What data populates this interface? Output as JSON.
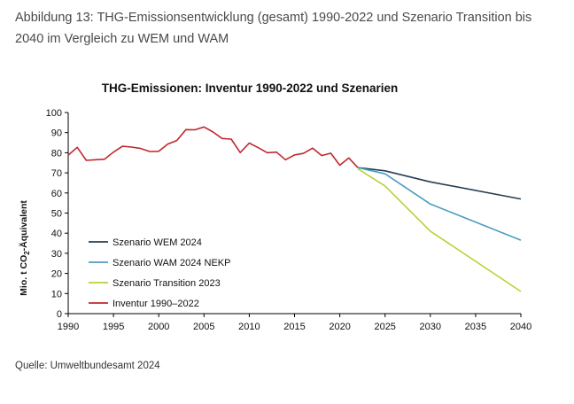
{
  "figure": {
    "caption": "Abbildung 13: THG-Emissionsentwicklung (gesamt) 1990-2022 und Szenario Transition bis 2040 im Vergleich zu WEM und WAM",
    "source": "Quelle: Umweltbundesamt 2024"
  },
  "chart_data": {
    "type": "line",
    "title": "THG-Emissionen: Inventur 1990-2022 und Szenarien",
    "ylabel_main": "Mio. t CO",
    "ylabel_sub": "2",
    "ylabel_tail": "-Äquivalent",
    "xlim": [
      1990,
      2040
    ],
    "ylim": [
      0,
      100
    ],
    "xticks": [
      1990,
      1995,
      2000,
      2005,
      2010,
      2015,
      2020,
      2025,
      2030,
      2035,
      2040
    ],
    "yticks": [
      0,
      10,
      20,
      30,
      40,
      50,
      60,
      70,
      80,
      90,
      100
    ],
    "grid": false,
    "legend_position": "lower-left",
    "series": [
      {
        "name": "Szenario WEM 2024",
        "color": "#243e52",
        "x": [
          2022,
          2025,
          2030,
          2040
        ],
        "y": [
          72.6,
          71.0,
          65.5,
          57.0
        ]
      },
      {
        "name": "Szenario WAM 2024 NEKP",
        "color": "#4d9cc1",
        "x": [
          2022,
          2025,
          2030,
          2040
        ],
        "y": [
          72.6,
          69.5,
          54.5,
          36.5
        ]
      },
      {
        "name": "Szenario Transition 2023",
        "color": "#b7d334",
        "x": [
          2022,
          2025,
          2030,
          2040
        ],
        "y": [
          72.0,
          63.5,
          41.0,
          11.0
        ]
      },
      {
        "name": "Inventur 1990–2022",
        "color": "#c0282e",
        "x": [
          1990,
          1991,
          1992,
          1993,
          1994,
          1995,
          1996,
          1997,
          1998,
          1999,
          2000,
          2001,
          2002,
          2003,
          2004,
          2005,
          2006,
          2007,
          2008,
          2009,
          2010,
          2011,
          2012,
          2013,
          2014,
          2015,
          2016,
          2017,
          2018,
          2019,
          2020,
          2021,
          2022
        ],
        "y": [
          78.8,
          82.7,
          76.2,
          76.5,
          76.8,
          80.3,
          83.2,
          82.8,
          82.1,
          80.6,
          80.7,
          84.3,
          86.1,
          91.5,
          91.4,
          92.8,
          90.3,
          87.1,
          86.8,
          80.1,
          84.8,
          82.5,
          80.0,
          80.3,
          76.5,
          78.9,
          79.7,
          82.3,
          78.6,
          79.8,
          73.8,
          77.4,
          72.6
        ]
      }
    ]
  }
}
